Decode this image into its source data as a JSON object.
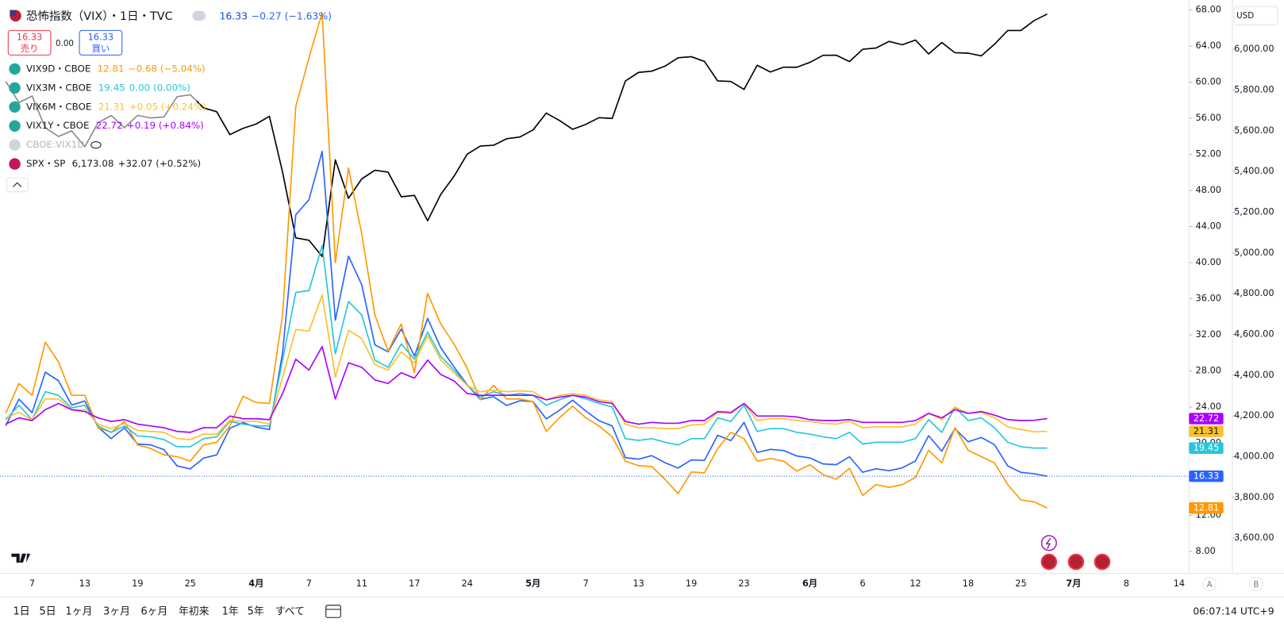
{
  "chart_data": {
    "type": "line",
    "title": "恐怖指数（VIX）・1日・TVC",
    "categories": [
      null,
      null,
      "7",
      null,
      null,
      null,
      "13",
      null,
      null,
      null,
      "19",
      null,
      null,
      null,
      "25",
      null,
      null,
      null,
      null,
      "4月",
      null,
      null,
      null,
      "7",
      null,
      null,
      null,
      "11",
      null,
      null,
      null,
      "17",
      null,
      null,
      null,
      "24",
      null,
      null,
      null,
      null,
      "5月",
      null,
      null,
      null,
      "7",
      null,
      null,
      null,
      "13",
      null,
      null,
      null,
      "19",
      null,
      null,
      null,
      "23",
      null,
      null,
      null,
      null,
      "6月",
      null,
      null,
      null,
      "6",
      null,
      null,
      null,
      "12",
      null,
      null,
      null,
      "18",
      null,
      null,
      null,
      "25",
      null,
      null,
      null,
      "7月",
      null,
      null,
      null,
      "8",
      null,
      null,
      null,
      "14"
    ],
    "series": [
      {
        "name": "VIX",
        "color": "#2962ff",
        "axis": "y",
        "change": "−0.27 (−1.63%)",
        "values": [
          21.93,
          24.87,
          23.37,
          27.86,
          26.92,
          24.23,
          24.66,
          21.77,
          20.51,
          21.7,
          19.9,
          19.8,
          19.28,
          17.48,
          17.15,
          18.33,
          18.69,
          21.65,
          22.28,
          21.77,
          21.51,
          30.02,
          45.31,
          46.98,
          52.33,
          33.62,
          40.72,
          37.56,
          30.89,
          30.12,
          32.64,
          29.65,
          33.82,
          30.57,
          28.45,
          26.47,
          24.84,
          25.15,
          24.17,
          24.7,
          24.6,
          22.68,
          23.64,
          24.76,
          23.55,
          22.48,
          21.9,
          18.39,
          18.22,
          18.62,
          17.83,
          17.24,
          18.14,
          18.09,
          20.87,
          20.28,
          22.29,
          18.96,
          19.31,
          19.18,
          18.57,
          18.36,
          17.69,
          17.61,
          18.48,
          16.77,
          17.16,
          16.95,
          17.26,
          18.02,
          20.82,
          19.11,
          21.6,
          20.14,
          20.62,
          19.83,
          17.48,
          16.76,
          16.6,
          16.33,
          null,
          null,
          null,
          null,
          null,
          null,
          null,
          null,
          null,
          null
        ]
      },
      {
        "name": "VIX9D・CBOE",
        "color": "#ff9800",
        "axis": "y",
        "change": "−0.68 (−5.04%)",
        "values": [
          23.3,
          26.6,
          25.3,
          31.2,
          29.0,
          25.3,
          25.3,
          21.7,
          21.2,
          22.4,
          19.8,
          19.4,
          18.7,
          18.5,
          18.0,
          19.8,
          20.1,
          21.9,
          25.2,
          24.5,
          24.4,
          34.2,
          57.3,
          62.7,
          67.7,
          40.0,
          50.5,
          43.2,
          34.2,
          30.2,
          33.2,
          27.8,
          36.6,
          33.2,
          31.0,
          28.3,
          24.8,
          26.4,
          24.9,
          24.9,
          24.6,
          21.3,
          22.8,
          24.1,
          22.8,
          21.9,
          20.7,
          18.0,
          17.5,
          17.4,
          16.0,
          14.4,
          16.8,
          16.7,
          19.4,
          21.2,
          20.5,
          18.0,
          18.3,
          18.0,
          16.9,
          17.6,
          16.5,
          16.0,
          17.2,
          14.2,
          15.4,
          15.1,
          15.4,
          16.2,
          19.2,
          17.8,
          21.7,
          19.2,
          18.5,
          17.8,
          15.4,
          13.7,
          13.49,
          12.81,
          null,
          null,
          null,
          null,
          null,
          null,
          null,
          null,
          null,
          null
        ]
      },
      {
        "name": "VIX3M・CBOE",
        "color": "#26c6da",
        "axis": "y",
        "change": "0.00 (0.00%)",
        "values": [
          22.6,
          24.2,
          22.6,
          25.7,
          25.3,
          23.9,
          24.2,
          21.9,
          21.2,
          21.9,
          20.8,
          20.7,
          20.4,
          19.6,
          19.6,
          20.5,
          20.7,
          22.4,
          22.1,
          21.9,
          21.9,
          29.2,
          36.7,
          36.9,
          41.9,
          29.9,
          35.7,
          34.2,
          29.2,
          28.4,
          31.0,
          29.3,
          32.3,
          29.6,
          28.1,
          26.4,
          25.1,
          25.7,
          25.3,
          25.5,
          25.3,
          24.2,
          24.8,
          25.3,
          24.9,
          24.4,
          24.0,
          20.5,
          20.3,
          20.5,
          20.1,
          19.8,
          20.5,
          20.5,
          22.8,
          22.4,
          24.2,
          21.3,
          21.6,
          21.6,
          21.2,
          21.0,
          20.7,
          20.5,
          21.2,
          19.9,
          20.1,
          20.1,
          20.1,
          20.5,
          22.6,
          21.2,
          24.0,
          22.5,
          22.8,
          21.7,
          20.1,
          19.6,
          19.45,
          19.45,
          null,
          null,
          null,
          null,
          null,
          null,
          null,
          null,
          null,
          null
        ]
      },
      {
        "name": "VIX6M・CBOE",
        "color": "#fbc02d",
        "axis": "y",
        "change": "+0.05 (+0.24%)",
        "values": [
          22.8,
          23.4,
          22.6,
          24.9,
          24.9,
          23.7,
          23.7,
          22.1,
          21.6,
          22.2,
          21.4,
          21.3,
          21.2,
          20.5,
          20.4,
          21.0,
          21.0,
          22.5,
          22.4,
          22.4,
          22.1,
          27.3,
          32.6,
          32.4,
          36.4,
          27.3,
          32.5,
          31.6,
          28.7,
          28.1,
          30.1,
          28.9,
          31.9,
          29.2,
          27.8,
          26.4,
          25.7,
          25.9,
          25.7,
          25.8,
          25.7,
          24.8,
          25.3,
          25.5,
          25.3,
          24.8,
          24.6,
          22.1,
          21.7,
          21.7,
          21.6,
          21.6,
          22.0,
          22.1,
          23.4,
          23.3,
          24.4,
          22.5,
          22.7,
          22.7,
          22.5,
          22.4,
          22.2,
          22.1,
          22.4,
          21.7,
          21.8,
          21.8,
          21.8,
          22.1,
          23.3,
          22.6,
          24.0,
          23.3,
          23.4,
          22.8,
          21.8,
          21.5,
          21.26,
          21.31,
          null,
          null,
          null,
          null,
          null,
          null,
          null,
          null,
          null,
          null
        ]
      },
      {
        "name": "VIX1Y・CBOE",
        "color": "#aa00ff",
        "axis": "y",
        "change": "+0.19 (+0.84%)",
        "values": [
          22.1,
          22.8,
          22.5,
          23.7,
          24.4,
          23.7,
          23.5,
          22.8,
          22.4,
          22.6,
          22.1,
          21.9,
          21.7,
          21.3,
          21.2,
          21.7,
          21.7,
          23.0,
          22.7,
          22.7,
          22.6,
          25.5,
          29.3,
          28.1,
          30.7,
          24.9,
          28.9,
          28.4,
          27.0,
          26.6,
          27.8,
          27.2,
          29.2,
          27.6,
          26.9,
          25.5,
          25.3,
          25.3,
          25.3,
          25.3,
          25.3,
          24.8,
          25.1,
          25.3,
          25.1,
          24.6,
          24.4,
          22.4,
          22.1,
          22.3,
          22.2,
          22.2,
          22.5,
          22.5,
          23.5,
          23.4,
          24.4,
          23.0,
          23.0,
          23.0,
          22.9,
          22.6,
          22.5,
          22.5,
          22.6,
          22.3,
          22.3,
          22.3,
          22.3,
          22.5,
          23.3,
          22.8,
          23.7,
          23.3,
          23.5,
          23.1,
          22.6,
          22.5,
          22.53,
          22.72,
          null,
          null,
          null,
          null,
          null,
          null,
          null,
          null,
          null,
          null
        ]
      },
      {
        "name": "SPX・SP",
        "color": "#000000",
        "axis": "y2",
        "change": "+32.07 (+0.52%)",
        "last_label": "6,173.08",
        "values": [
          5842.63,
          5738.52,
          5770.2,
          5614.56,
          5572.07,
          5599.3,
          5521.52,
          5638.94,
          5675.12,
          5614.66,
          5675.29,
          5662.89,
          5667.56,
          5767.57,
          5776.65,
          5712.2,
          5693.31,
          5580.94,
          5611.85,
          5633.07,
          5670.97,
          5396.52,
          5074.08,
          5062.25,
          4982.77,
          5456.9,
          5268.05,
          5363.36,
          5405.97,
          5396.63,
          5275.7,
          5282.7,
          5158.2,
          5287.76,
          5375.86,
          5484.77,
          5525.21,
          5528.75,
          5560.83,
          5569.06,
          5604.14,
          5686.67,
          5650.38,
          5606.91,
          5631.28,
          5663.94,
          5659.91,
          5844.19,
          5886.55,
          5892.58,
          5916.93,
          5958.38,
          5963.6,
          5940.46,
          5844.61,
          5842.01,
          5802.82,
          5921.54,
          5888.55,
          5912.17,
          5911.69,
          5935.94,
          5970.37,
          5970.81,
          5939.3,
          6000.36,
          6005.88,
          6038.81,
          6022.24,
          6045.26,
          5976.97,
          6033.11,
          5982.72,
          5980.87,
          5967.84,
          6025.17,
          6092.18,
          6092.16,
          6141.01,
          6173.08,
          null,
          null,
          null,
          null,
          null,
          null,
          null,
          null,
          null,
          null
        ]
      }
    ],
    "hidden_series": "CBOE:VIX1D",
    "ylim": [
      5.57,
      69.09
    ],
    "yticks": [
      {
        "value": 8,
        "label": "8.00"
      },
      {
        "value": 12,
        "label": "12.00"
      },
      {
        "value": 16,
        "label": "16.00"
      },
      {
        "value": 20,
        "label": "20.00"
      },
      {
        "value": 24,
        "label": "24.00"
      },
      {
        "value": 28,
        "label": "28.00"
      },
      {
        "value": 32,
        "label": "32.00"
      },
      {
        "value": 36,
        "label": "36.00"
      },
      {
        "value": 40,
        "label": "40.00"
      },
      {
        "value": 44,
        "label": "44.00"
      },
      {
        "value": 48,
        "label": "48.00"
      },
      {
        "value": 52,
        "label": "52.00"
      },
      {
        "value": 56,
        "label": "56.00"
      },
      {
        "value": 60,
        "label": "60.00"
      },
      {
        "value": 64,
        "label": "64.00"
      },
      {
        "value": 68,
        "label": "68.00"
      }
    ],
    "y2lim": [
      3427,
      6241
    ],
    "y2ticks": [
      {
        "value": 3600,
        "label": "3,600.00"
      },
      {
        "value": 3800,
        "label": "3,800.00"
      },
      {
        "value": 4000,
        "label": "4,000.00"
      },
      {
        "value": 4200,
        "label": "4,200.00"
      },
      {
        "value": 4400,
        "label": "4,400.00"
      },
      {
        "value": 4600,
        "label": "4,600.00"
      },
      {
        "value": 4800,
        "label": "4,800.00"
      },
      {
        "value": 5000,
        "label": "5,000.00"
      },
      {
        "value": 5200,
        "label": "5,200.00"
      },
      {
        "value": 5400,
        "label": "5,400.00"
      },
      {
        "value": 5600,
        "label": "5,600.00"
      },
      {
        "value": 5800,
        "label": "5,800.00"
      },
      {
        "value": 6000,
        "label": "6,000.00"
      }
    ],
    "grid": false
  },
  "ui": {
    "sell": "売り",
    "buy": "買い",
    "spread": "0.00",
    "currency": "USD",
    "scale_a": "A",
    "scale_b": "B",
    "ranges": [
      "1日",
      "5日",
      "1ヶ月",
      "3ヶ月",
      "6ヶ月",
      "年初来",
      "1年",
      "5年",
      "すべて"
    ],
    "clock": "06:07:14 UTC+9"
  }
}
